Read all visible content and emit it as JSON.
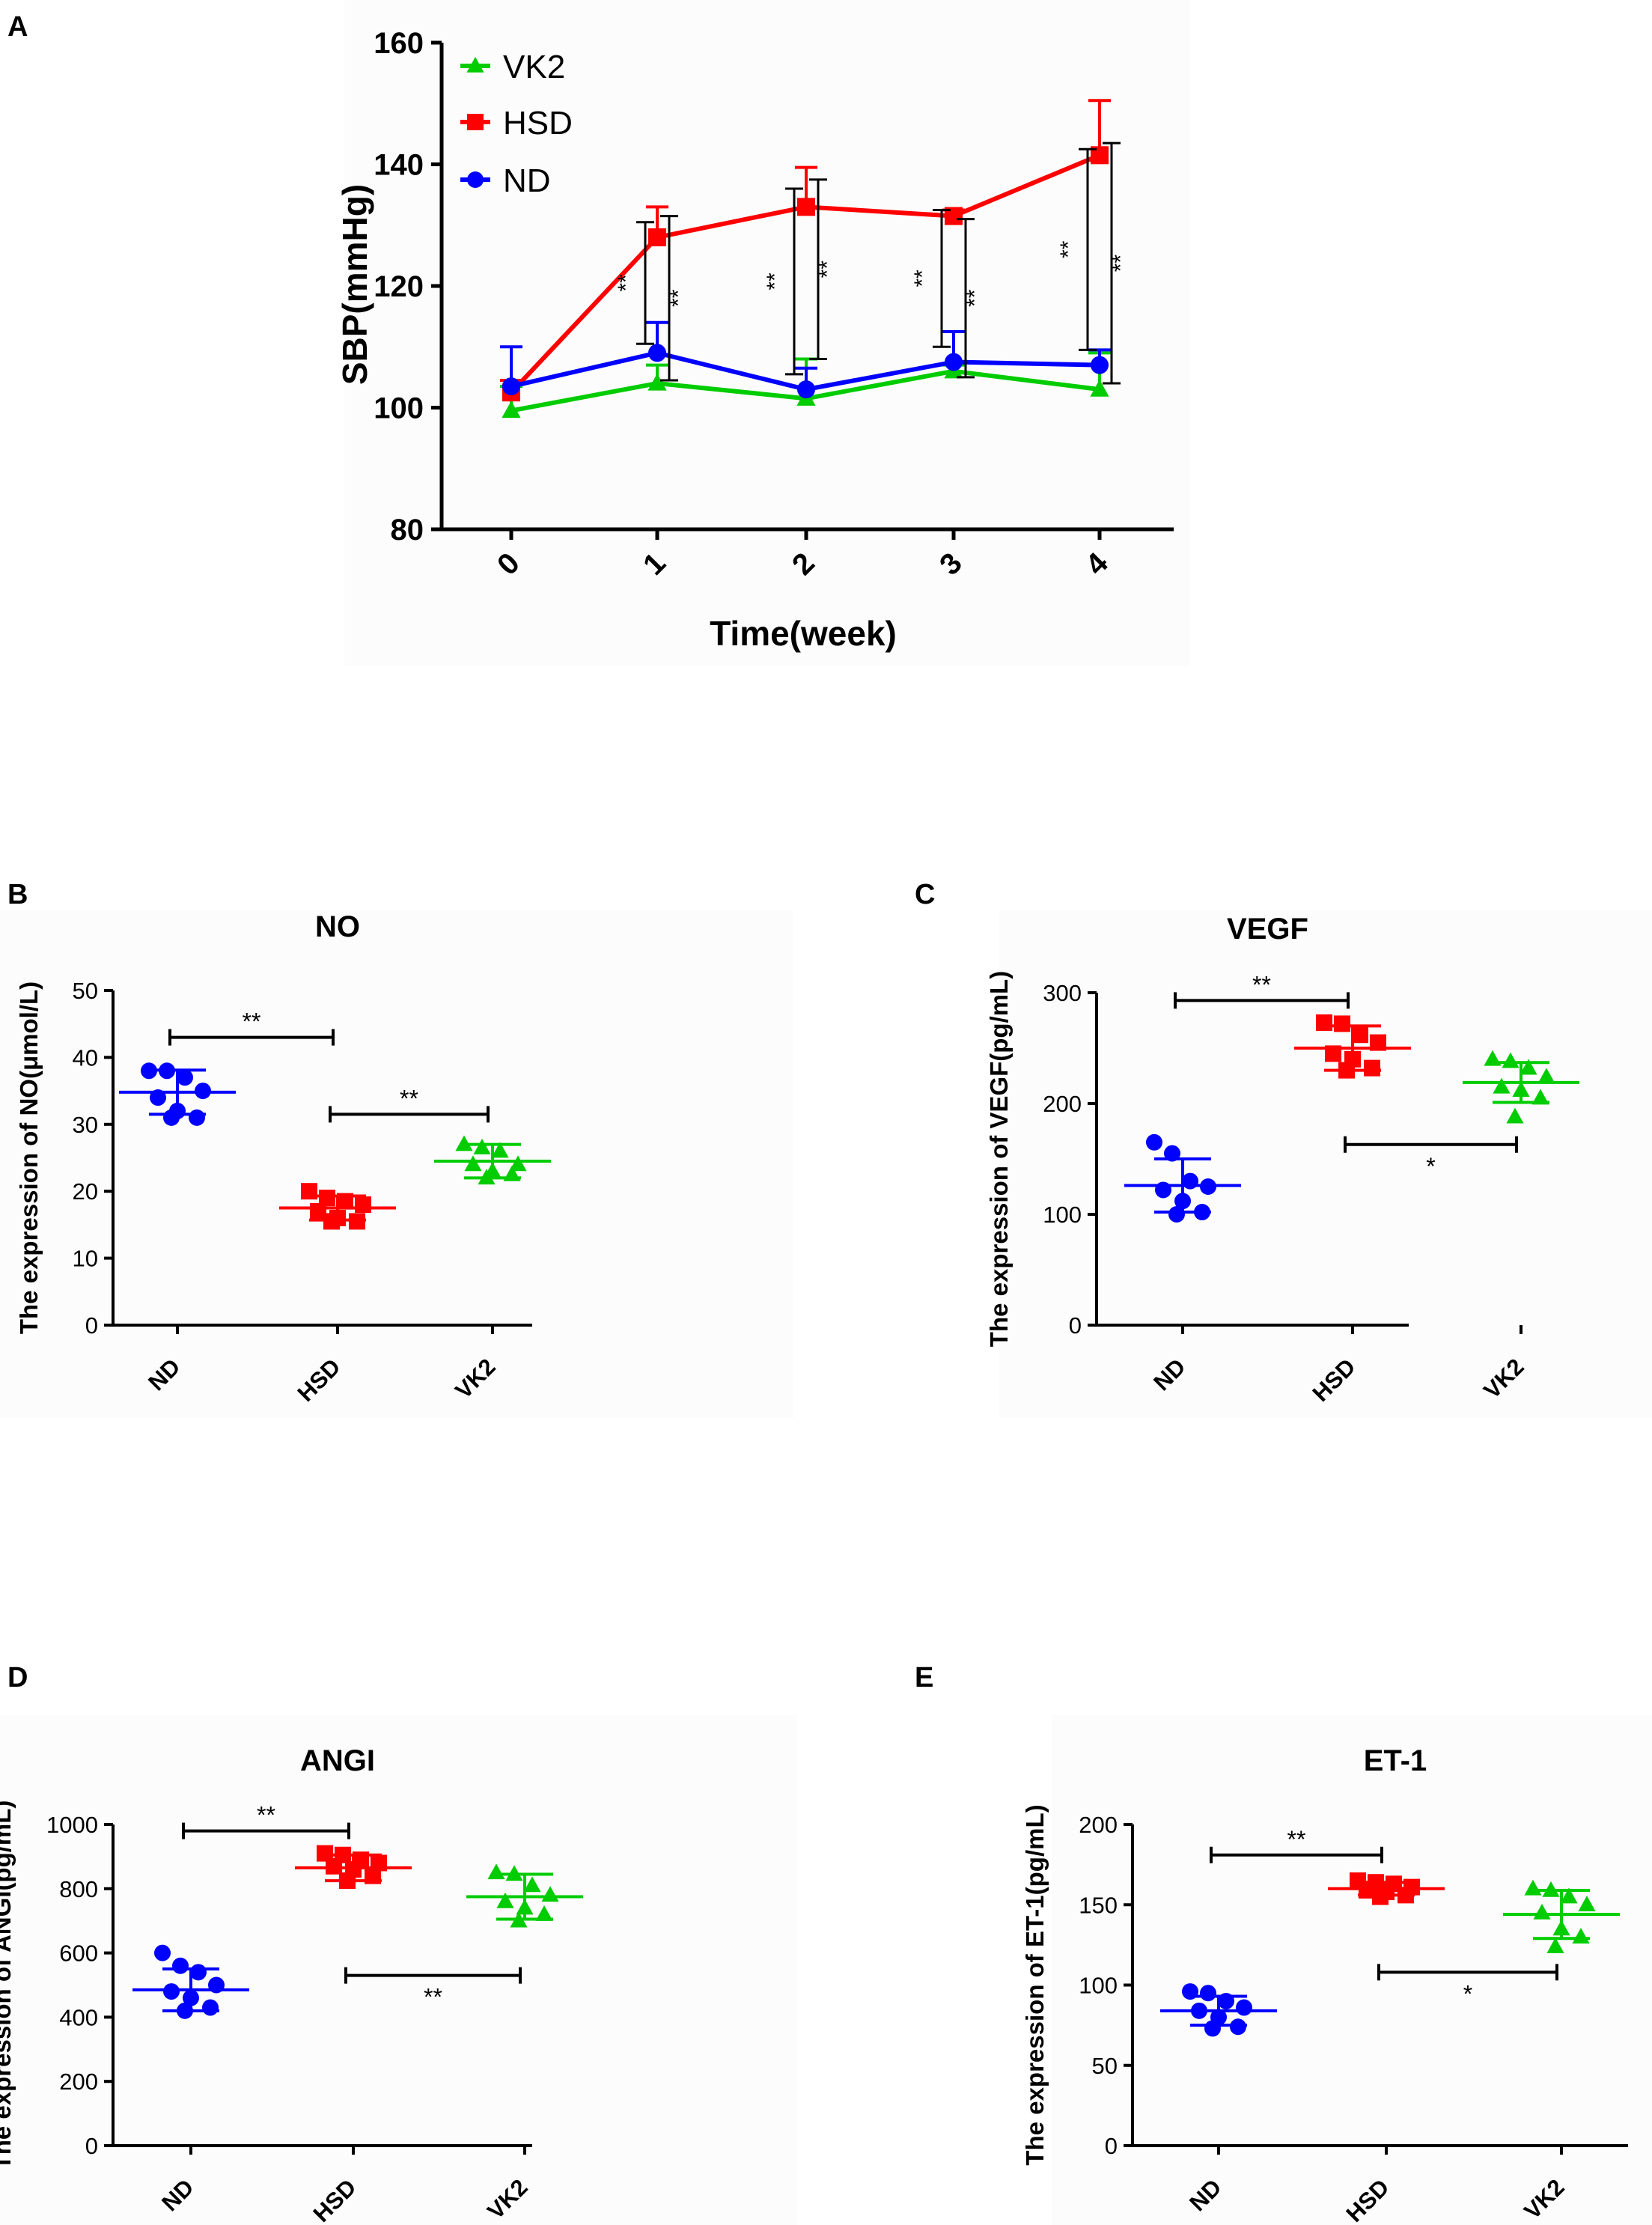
{
  "figure": {
    "colors": {
      "ND": "#0000ff",
      "HSD": "#ff0000",
      "VK2": "#00cc00",
      "axis": "#000000"
    }
  },
  "chart_data": [
    {
      "id": "A",
      "panel_label": "A",
      "type": "line",
      "title": "",
      "xlabel": "Time(week)",
      "ylabel": "SBP(mmHg)",
      "x": [
        0,
        1,
        2,
        3,
        4
      ],
      "x_tick_labels": [
        "0",
        "1",
        "2",
        "3",
        "4"
      ],
      "ylim": [
        80,
        160
      ],
      "y_ticks": [
        80,
        100,
        120,
        140,
        160
      ],
      "legend": [
        "VK2",
        "HSD",
        "ND"
      ],
      "legend_position": "top-left",
      "series": [
        {
          "name": "VK2",
          "marker": "triangle",
          "values": [
            99.5,
            104,
            101.5,
            106,
            103
          ],
          "errors": [
            4,
            3,
            6.5,
            1,
            6
          ]
        },
        {
          "name": "HSD",
          "marker": "square",
          "values": [
            102.5,
            128,
            133,
            131.5,
            141.5
          ],
          "errors": [
            2,
            5,
            6.5,
            1,
            9
          ]
        },
        {
          "name": "ND",
          "marker": "circle",
          "values": [
            103.5,
            109,
            103,
            107.5,
            107
          ],
          "errors": [
            6.5,
            5,
            3.5,
            5,
            2.5
          ]
        }
      ],
      "annotations": [
        {
          "x": 1,
          "text": "**",
          "range": [
            110.5,
            130.5
          ],
          "side": "left"
        },
        {
          "x": 1,
          "text": "**",
          "range": [
            104.5,
            131.5
          ],
          "side": "right"
        },
        {
          "x": 2,
          "text": "**",
          "range": [
            105.5,
            136
          ],
          "side": "left"
        },
        {
          "x": 2,
          "text": "**",
          "range": [
            108,
            137.5
          ],
          "side": "right"
        },
        {
          "x": 3,
          "text": "**",
          "range": [
            110,
            132.5
          ],
          "side": "left"
        },
        {
          "x": 3,
          "text": "**",
          "range": [
            105,
            131
          ],
          "side": "right"
        },
        {
          "x": 4,
          "text": "**",
          "range": [
            109.5,
            142.5
          ],
          "side": "left"
        },
        {
          "x": 4,
          "text": "**",
          "range": [
            104,
            143.5
          ],
          "side": "right"
        }
      ]
    },
    {
      "id": "B",
      "panel_label": "B",
      "type": "scatter",
      "title": "NO",
      "ylabel": "The expression of NO(μmol/L)",
      "categories": [
        "ND",
        "HSD",
        "VK2"
      ],
      "ylim": [
        0,
        50
      ],
      "y_ticks": [
        0,
        10,
        20,
        30,
        40,
        50
      ],
      "groups": [
        {
          "name": "ND",
          "marker": "circle",
          "mean": 34.8,
          "sd": 3.3,
          "points": [
            38,
            38,
            37,
            35,
            34,
            32,
            31,
            31
          ]
        },
        {
          "name": "HSD",
          "marker": "square",
          "mean": 17.5,
          "sd": 1.8,
          "points": [
            20,
            19,
            18.5,
            18,
            17,
            16,
            15.5,
            15.5
          ]
        },
        {
          "name": "VK2",
          "marker": "triangle",
          "mean": 24.5,
          "sd": 2.5,
          "points": [
            27,
            26.5,
            26,
            24,
            24,
            23,
            22.5,
            22
          ]
        }
      ],
      "comparisons": [
        {
          "from": "ND",
          "to": "HSD",
          "y": 43,
          "label": "**"
        },
        {
          "from": "HSD",
          "to": "VK2",
          "y": 31.5,
          "label": "**"
        }
      ]
    },
    {
      "id": "C",
      "panel_label": "C",
      "type": "scatter",
      "title": "VEGF",
      "ylabel": "The expression of VEGF(pg/mL)",
      "categories": [
        "ND",
        "HSD",
        "VK2"
      ],
      "ylim": [
        0,
        300
      ],
      "y_ticks": [
        0,
        100,
        200,
        300
      ],
      "groups": [
        {
          "name": "ND",
          "marker": "circle",
          "mean": 126,
          "sd": 24,
          "points": [
            165,
            155,
            130,
            125,
            122,
            112,
            102,
            100
          ]
        },
        {
          "name": "HSD",
          "marker": "square",
          "mean": 250,
          "sd": 20,
          "points": [
            273,
            272,
            262,
            255,
            245,
            240,
            232,
            230
          ]
        },
        {
          "name": "VK2",
          "marker": "triangle",
          "mean": 219,
          "sd": 18,
          "points": [
            240,
            238,
            232,
            224,
            215,
            212,
            205,
            188
          ]
        }
      ],
      "comparisons": [
        {
          "from": "ND",
          "to": "HSD",
          "y": 293,
          "label": "**"
        },
        {
          "from": "HSD",
          "to": "VK2",
          "y": 163,
          "label": "*",
          "label_position": "below"
        }
      ]
    },
    {
      "id": "D",
      "panel_label": "D",
      "type": "scatter",
      "title": "ANGI",
      "ylabel": "The expression of ANGI(pg/mL)",
      "categories": [
        "ND",
        "HSD",
        "VK2"
      ],
      "ylim": [
        0,
        1000
      ],
      "y_ticks": [
        0,
        200,
        400,
        600,
        800,
        1000
      ],
      "groups": [
        {
          "name": "ND",
          "marker": "circle",
          "mean": 485,
          "sd": 65,
          "points": [
            600,
            560,
            540,
            500,
            480,
            460,
            430,
            420
          ]
        },
        {
          "name": "HSD",
          "marker": "square",
          "mean": 865,
          "sd": 40,
          "points": [
            910,
            905,
            890,
            880,
            870,
            860,
            840,
            825
          ]
        },
        {
          "name": "VK2",
          "marker": "triangle",
          "mean": 775,
          "sd": 70,
          "points": [
            850,
            845,
            810,
            780,
            760,
            740,
            720,
            700
          ]
        }
      ],
      "comparisons": [
        {
          "from": "ND",
          "to": "HSD",
          "y": 980,
          "label": "**"
        },
        {
          "from": "HSD",
          "to": "VK2",
          "y": 530,
          "label": "**",
          "label_position": "below"
        }
      ]
    },
    {
      "id": "E",
      "panel_label": "E",
      "type": "scatter",
      "title": "ET-1",
      "ylabel": "The expression of ET-1(pg/mL)",
      "categories": [
        "ND",
        "HSD",
        "VK2"
      ],
      "ylim": [
        0,
        200
      ],
      "y_ticks": [
        0,
        50,
        100,
        150,
        200
      ],
      "groups": [
        {
          "name": "ND",
          "marker": "circle",
          "mean": 84,
          "sd": 9,
          "points": [
            96,
            95,
            90,
            86,
            84,
            80,
            74,
            73
          ]
        },
        {
          "name": "HSD",
          "marker": "square",
          "mean": 160,
          "sd": 4,
          "points": [
            165,
            164,
            163,
            161,
            159,
            158,
            156,
            155
          ]
        },
        {
          "name": "VK2",
          "marker": "triangle",
          "mean": 144,
          "sd": 15,
          "points": [
            160,
            159,
            155,
            150,
            145,
            135,
            130,
            124
          ]
        }
      ],
      "comparisons": [
        {
          "from": "ND",
          "to": "HSD",
          "y": 181,
          "label": "**"
        },
        {
          "from": "HSD",
          "to": "VK2",
          "y": 108,
          "label": "*",
          "label_position": "below"
        }
      ]
    }
  ]
}
